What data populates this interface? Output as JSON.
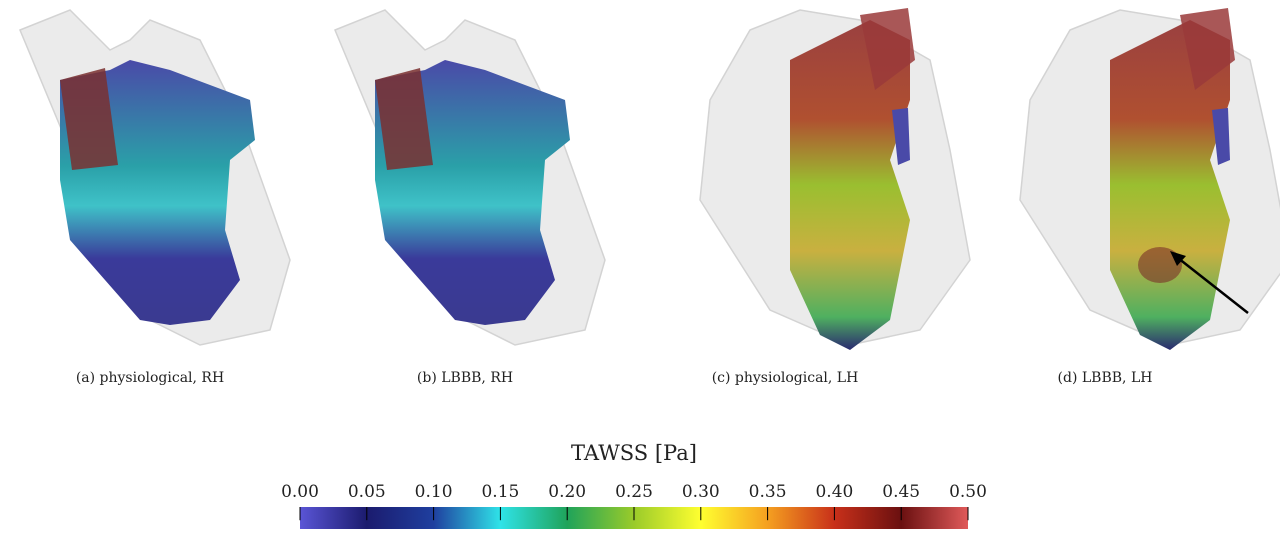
{
  "panels": [
    {
      "caption": "(a) physiological, RH"
    },
    {
      "caption": "(b) LBBB, RH"
    },
    {
      "caption": "(c) physiological, LH"
    },
    {
      "caption": "(d) LBBB, LH"
    }
  ],
  "colorbar": {
    "title": "TAWSS [Pa]",
    "range": [
      0,
      0.5
    ],
    "ticks": [
      {
        "value": 0,
        "label": "0.00"
      },
      {
        "value": 0.05,
        "label": "0.05"
      },
      {
        "value": 0.1,
        "label": "0.10"
      },
      {
        "value": 0.15,
        "label": "0.15"
      },
      {
        "value": 0.2,
        "label": "0.20"
      },
      {
        "value": 0.25,
        "label": "0.25"
      },
      {
        "value": 0.3,
        "label": "0.30"
      },
      {
        "value": 0.35,
        "label": "0.35"
      },
      {
        "value": 0.4,
        "label": "0.40"
      },
      {
        "value": 0.45,
        "label": "0.45"
      },
      {
        "value": 0.5,
        "label": "0.50"
      }
    ],
    "colormap": [
      "#5a55d6",
      "#1b1b6e",
      "#1f3f9f",
      "#2fe3e8",
      "#1fa35a",
      "#9acb2a",
      "#ffff30",
      "#f5a020",
      "#c8301a",
      "#6a1010",
      "#e05a5a"
    ]
  }
}
